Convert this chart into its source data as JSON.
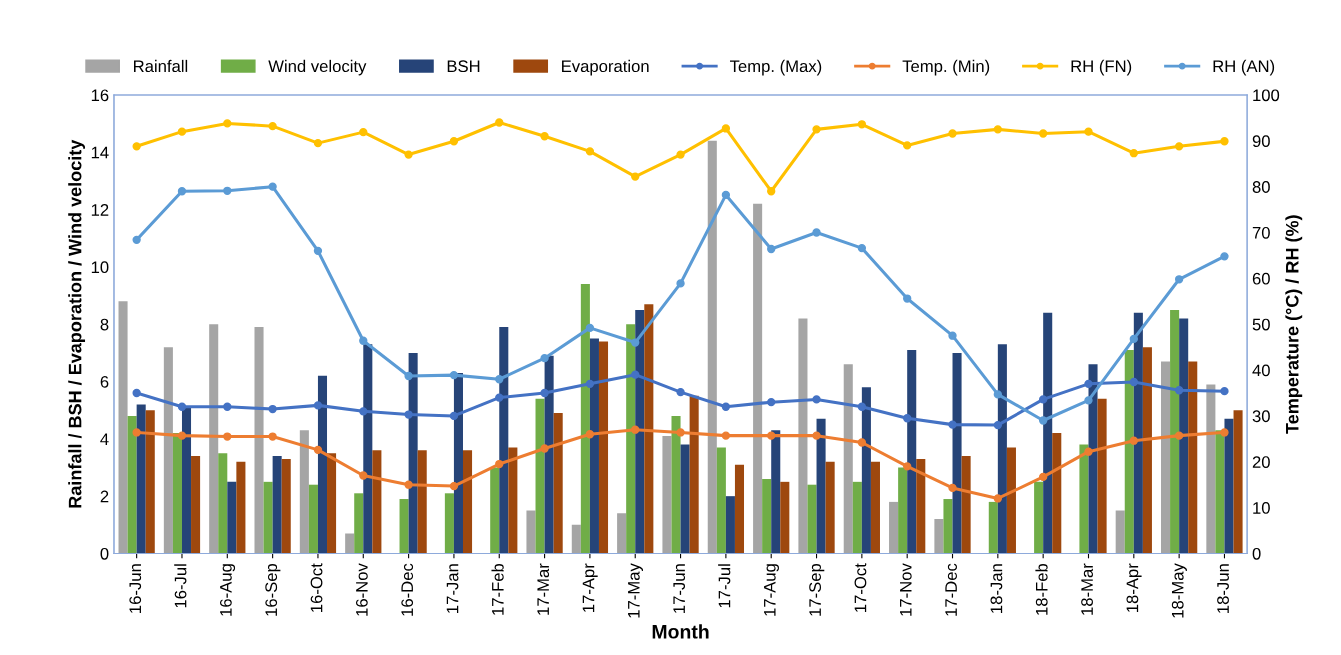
{
  "chart_data": {
    "type": "bar",
    "xlabel": "Month",
    "ylabel": "Rainfall / BSH / Evaporation / Wind velocity",
    "y2label": "Temperature (°C) / RH (%)",
    "categories": [
      "16-Jun",
      "16-Jul",
      "16-Aug",
      "16-Sep",
      "16-Oct",
      "16-Nov",
      "16-Dec",
      "17-Jan",
      "17-Feb",
      "17-Mar",
      "17-Apr",
      "17-May",
      "17-Jun",
      "17-Jul",
      "17-Aug",
      "17-Sep",
      "17-Oct",
      "17-Nov",
      "17-Dec",
      "18-Jan",
      "18-Feb",
      "18-Mar",
      "18-Apr",
      "18-May",
      "18-Jun"
    ],
    "series": [
      {
        "name": "Rainfall",
        "color": "#a5a5a5",
        "values": [
          8.8,
          7.2,
          8.0,
          7.9,
          4.3,
          0.7,
          0,
          0,
          0,
          1.5,
          1.0,
          1.4,
          4.1,
          14.4,
          12.2,
          8.2,
          6.6,
          1.8,
          1.2,
          0,
          0,
          0,
          1.5,
          6.7,
          5.9
        ]
      },
      {
        "name": "Wind velocity",
        "color": "#70ad47",
        "values": [
          4.8,
          4.2,
          3.5,
          2.5,
          2.4,
          2.1,
          1.9,
          2.1,
          3.0,
          5.4,
          9.4,
          8.0,
          4.8,
          3.7,
          2.6,
          2.4,
          2.5,
          3.0,
          1.9,
          1.8,
          2.5,
          3.8,
          7.1,
          8.5,
          4.3
        ]
      },
      {
        "name": "BSH",
        "color": "#264478",
        "values": [
          5.2,
          5.1,
          2.5,
          3.4,
          6.2,
          7.3,
          7.0,
          6.3,
          7.9,
          6.9,
          7.5,
          8.5,
          3.8,
          2.0,
          4.3,
          4.7,
          5.8,
          7.1,
          7.0,
          7.3,
          8.4,
          6.6,
          8.4,
          8.2,
          4.7
        ]
      },
      {
        "name": "Evaporation",
        "color": "#9e480e",
        "values": [
          5.0,
          3.4,
          3.2,
          3.3,
          3.5,
          3.6,
          3.6,
          3.6,
          3.7,
          4.9,
          7.4,
          8.7,
          5.5,
          3.1,
          2.5,
          3.2,
          3.2,
          3.3,
          3.4,
          3.7,
          4.2,
          5.4,
          7.2,
          6.7,
          5.0
        ]
      },
      {
        "name": "Temp. (Max)",
        "type": "line",
        "axis": "y2",
        "color": "#4472c4",
        "values": [
          35,
          32,
          32,
          31.5,
          32.3,
          31,
          30.3,
          30,
          34,
          35,
          37,
          39,
          35.2,
          32,
          33,
          33.6,
          32,
          29.5,
          28.1,
          28,
          33.6,
          37,
          37.4,
          35.6,
          35.4
        ]
      },
      {
        "name": "Temp. (Min)",
        "type": "line",
        "axis": "y2",
        "color": "#ed7d31",
        "values": [
          26.4,
          25.7,
          25.5,
          25.5,
          22.6,
          17,
          15,
          14.7,
          19.5,
          22.9,
          26,
          27,
          26.4,
          25.7,
          25.7,
          25.7,
          24.2,
          19,
          14.3,
          12,
          16.7,
          22.2,
          24.6,
          25.7,
          26.4
        ]
      },
      {
        "name": "RH (FN)",
        "type": "line",
        "axis": "y2",
        "color": "#ffc000",
        "values": [
          88.8,
          92,
          93.8,
          93.2,
          89.5,
          91.9,
          87,
          89.9,
          94,
          91,
          87.7,
          82.2,
          87,
          92.7,
          79,
          92.5,
          93.6,
          89,
          91.6,
          92.5,
          91.6,
          92,
          87.3,
          88.8,
          89.9
        ]
      },
      {
        "name": "RH (AN)",
        "type": "line",
        "axis": "y2",
        "color": "#5b9bd5",
        "values": [
          68.4,
          79,
          79.1,
          80,
          66,
          46.4,
          38.7,
          38.9,
          38,
          42.6,
          49.2,
          46,
          58.9,
          78.2,
          66.4,
          70,
          66.6,
          55.6,
          47.5,
          34.7,
          29,
          33.4,
          46.8,
          59.8,
          64.8
        ]
      }
    ],
    "ylim": [
      0,
      16
    ],
    "yticks": [
      0,
      2,
      4,
      6,
      8,
      10,
      12,
      14,
      16
    ],
    "y2lim": [
      0,
      100
    ],
    "y2ticks": [
      0,
      10,
      20,
      30,
      40,
      50,
      60,
      70,
      80,
      90,
      100
    ],
    "grid": false,
    "legend": "top",
    "marker": "circle",
    "line_style": "solid"
  }
}
